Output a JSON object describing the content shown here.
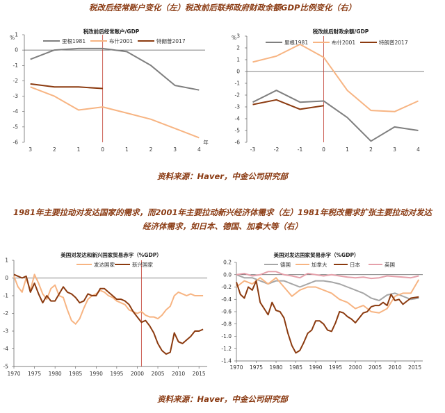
{
  "captions": {
    "top": "税改后经常账户变化（左）税改前后联邦政府财政余额GDP比例变化（右）",
    "source_top": "资料来源：Haver，中金公司研究部",
    "mid_line1": "1981年主要拉动对发达国家的需求，而2001年主要拉动新兴经济体需求（左）1981年税改需求扩张主要拉动对发达",
    "mid_line2": "经济体需求，如日本、德国、加拿大等（右）",
    "source_bottom": "资料来源：Haver，中金公司研究部"
  },
  "colors": {
    "reagan": "#7f7f7f",
    "bush": "#f7b482",
    "trump": "#8b3a0f",
    "developed": "#f7b482",
    "emerging": "#8b3a0f",
    "germany": "#a6a6a6",
    "canada": "#f7b482",
    "japan": "#8b3a0f",
    "uk": "#e5a0aa",
    "vline": "#c0392b",
    "axis": "#555555"
  },
  "chart_data": [
    {
      "id": "chart1",
      "type": "line",
      "title": "税改前后经常账户/GDP",
      "unit": "%",
      "xlabel": "年",
      "x_ticks": [
        "3",
        "2",
        "1",
        "0",
        "1",
        "2",
        "3",
        "4"
      ],
      "ylim": [
        -6,
        1
      ],
      "y_ticks": [
        "1",
        "0",
        "-1",
        "-2",
        "-3",
        "-4",
        "-5",
        "-6"
      ],
      "vline_index": 3,
      "series": [
        {
          "name": "里根1981",
          "color_key": "reagan",
          "values": [
            -0.6,
            0,
            0.1,
            0.1,
            -0.1,
            -1,
            -2.3,
            -2.6
          ]
        },
        {
          "name": "布什2001",
          "color_key": "bush",
          "values": [
            -2.4,
            -3,
            -3.9,
            -3.7,
            -4.1,
            -4.5,
            -5.1,
            -5.7
          ]
        },
        {
          "name": "特朗普2017",
          "color_key": "trump",
          "values": [
            -2.2,
            -2.4,
            -2.4,
            -2.5,
            null,
            null,
            null,
            null
          ]
        }
      ]
    },
    {
      "id": "chart2",
      "type": "line",
      "title": "税改前后财政余额/GDP",
      "unit": "%",
      "xlabel": "",
      "x_ticks": [
        "-3",
        "-2",
        "-1",
        "0",
        "1",
        "2",
        "3",
        "4"
      ],
      "ylim": [
        -6,
        3
      ],
      "y_ticks": [
        "3",
        "2",
        "1",
        "0",
        "-1",
        "-2",
        "-3",
        "-4",
        "-5",
        "-6"
      ],
      "vline_index": 3,
      "series": [
        {
          "name": "里根1981",
          "color_key": "reagan",
          "values": [
            -2.6,
            -1.6,
            -2.6,
            -2.5,
            -3.9,
            -5.9,
            -4.7,
            -5.0
          ]
        },
        {
          "name": "布什2001",
          "color_key": "bush",
          "values": [
            0.8,
            1.3,
            2.3,
            1.2,
            -1.6,
            -3.3,
            -3.4,
            -2.5
          ]
        },
        {
          "name": "特朗普2017",
          "color_key": "trump",
          "values": [
            -2.8,
            -2.4,
            -3.2,
            -2.9,
            null,
            null,
            null,
            null
          ]
        }
      ]
    },
    {
      "id": "chart3",
      "type": "line",
      "title": "美国对发达和新兴国家贸易赤字（%GDP）",
      "unit": "",
      "x_ticks": [
        "1970",
        "1975",
        "1980",
        "1985",
        "1990",
        "1995",
        "2000",
        "2005",
        "2010",
        "2015"
      ],
      "xlim": [
        1970,
        2017
      ],
      "ylim": [
        -5,
        1
      ],
      "y_ticks": [
        "1",
        "0",
        "-1",
        "-2",
        "-3",
        "-4",
        "-5"
      ],
      "vline_x": 2001,
      "series": [
        {
          "name": "发达国家",
          "color_key": "developed",
          "x": [
            1970,
            1971,
            1972,
            1973,
            1974,
            1975,
            1976,
            1977,
            1978,
            1979,
            1980,
            1981,
            1982,
            1983,
            1984,
            1985,
            1986,
            1987,
            1988,
            1989,
            1990,
            1991,
            1992,
            1993,
            1994,
            1995,
            1996,
            1997,
            1998,
            1999,
            2000,
            2001,
            2002,
            2003,
            2004,
            2005,
            2006,
            2007,
            2008,
            2009,
            2010,
            2011,
            2012,
            2013,
            2014,
            2015,
            2016
          ],
          "values": [
            0.1,
            -0.5,
            -0.8,
            0.0,
            -0.7,
            0.2,
            -0.3,
            -0.9,
            -1.2,
            -0.6,
            -0.4,
            -1.0,
            -1.1,
            -1.8,
            -2.4,
            -2.6,
            -2.3,
            -1.7,
            -1.2,
            -1.0,
            -0.9,
            -0.7,
            -0.8,
            -1.0,
            -1.1,
            -1.3,
            -1.4,
            -1.5,
            -1.8,
            -1.9,
            -2.0,
            -1.9,
            -2.1,
            -2.2,
            -2.2,
            -2.3,
            -2.1,
            -1.8,
            -1.6,
            -1.0,
            -0.8,
            -0.9,
            -1.0,
            -0.9,
            -1.0,
            -1.0,
            -1.0
          ]
        },
        {
          "name": "新兴国家",
          "color_key": "emerging",
          "x": [
            1970,
            1971,
            1972,
            1973,
            1974,
            1975,
            1976,
            1977,
            1978,
            1979,
            1980,
            1981,
            1982,
            1983,
            1984,
            1985,
            1986,
            1987,
            1988,
            1989,
            1990,
            1991,
            1992,
            1993,
            1994,
            1995,
            1996,
            1997,
            1998,
            1999,
            2000,
            2001,
            2002,
            2003,
            2004,
            2005,
            2006,
            2007,
            2008,
            2009,
            2010,
            2011,
            2012,
            2013,
            2014,
            2015,
            2016
          ],
          "values": [
            0.2,
            0.1,
            0.0,
            0.1,
            -0.8,
            -0.3,
            -0.9,
            -1.4,
            -1.0,
            -1.3,
            -1.3,
            -0.9,
            -0.5,
            -0.8,
            -0.9,
            -1.1,
            -1.4,
            -1.3,
            -0.9,
            -1.0,
            -1.0,
            -0.6,
            -0.6,
            -0.8,
            -1.0,
            -1.2,
            -1.2,
            -1.3,
            -1.5,
            -1.9,
            -2.2,
            -2.5,
            -2.4,
            -2.7,
            -3.1,
            -3.7,
            -4.1,
            -4.3,
            -4.2,
            -3.1,
            -3.6,
            -3.7,
            -3.5,
            -3.3,
            -3.0,
            -3.0,
            -2.9
          ]
        }
      ]
    },
    {
      "id": "chart4",
      "type": "line",
      "title": "美国对发达国家贸易赤字（%GDP）",
      "unit": "",
      "x_ticks": [
        "1970",
        "1975",
        "1980",
        "1985",
        "1990",
        "1995",
        "2000",
        "2005",
        "2010",
        "2015"
      ],
      "xlim": [
        1970,
        2017
      ],
      "ylim": [
        -1.4,
        0.2
      ],
      "y_ticks": [
        "0.2",
        "0.0",
        "-0.2",
        "-0.4",
        "-0.6",
        "-0.8",
        "-1.0",
        "-1.2",
        "-1.4"
      ],
      "series": [
        {
          "name": "德国",
          "color_key": "germany",
          "x": [
            1970,
            1972,
            1974,
            1976,
            1978,
            1980,
            1982,
            1984,
            1986,
            1988,
            1990,
            1992,
            1994,
            1996,
            1998,
            2000,
            2002,
            2004,
            2006,
            2008,
            2010,
            2012,
            2014,
            2016
          ],
          "values": [
            0.0,
            -0.05,
            -0.05,
            -0.1,
            -0.15,
            -0.1,
            -0.1,
            -0.15,
            -0.2,
            -0.15,
            -0.1,
            -0.1,
            -0.12,
            -0.15,
            -0.2,
            -0.25,
            -0.3,
            -0.38,
            -0.42,
            -0.33,
            -0.3,
            -0.35,
            -0.4,
            -0.38
          ]
        },
        {
          "name": "加拿大",
          "color_key": "canada",
          "x": [
            1970,
            1972,
            1974,
            1976,
            1978,
            1980,
            1982,
            1984,
            1986,
            1988,
            1990,
            1992,
            1994,
            1996,
            1998,
            2000,
            2002,
            2004,
            2006,
            2008,
            2010,
            2012,
            2014,
            2016
          ],
          "values": [
            -0.2,
            -0.1,
            -0.15,
            -0.05,
            -0.15,
            -0.05,
            -0.2,
            -0.35,
            -0.25,
            -0.2,
            -0.2,
            -0.25,
            -0.3,
            -0.4,
            -0.45,
            -0.55,
            -0.5,
            -0.6,
            -0.62,
            -0.55,
            -0.35,
            -0.3,
            -0.3,
            -0.08
          ]
        },
        {
          "name": "日本",
          "color_key": "japan",
          "x": [
            1970,
            1971,
            1972,
            1973,
            1974,
            1975,
            1976,
            1977,
            1978,
            1979,
            1980,
            1981,
            1982,
            1983,
            1984,
            1985,
            1986,
            1987,
            1988,
            1989,
            1990,
            1991,
            1992,
            1993,
            1994,
            1995,
            1996,
            1997,
            1998,
            1999,
            2000,
            2001,
            2002,
            2003,
            2004,
            2005,
            2006,
            2007,
            2008,
            2009,
            2010,
            2011,
            2012,
            2013,
            2014,
            2015,
            2016
          ],
          "values": [
            -0.12,
            -0.32,
            -0.38,
            -0.2,
            -0.25,
            -0.1,
            -0.45,
            -0.55,
            -0.65,
            -0.45,
            -0.58,
            -0.6,
            -0.7,
            -0.95,
            -1.15,
            -1.27,
            -1.23,
            -1.1,
            -0.95,
            -0.9,
            -0.75,
            -0.75,
            -0.8,
            -0.9,
            -0.92,
            -0.78,
            -0.6,
            -0.62,
            -0.68,
            -0.72,
            -0.78,
            -0.7,
            -0.62,
            -0.6,
            -0.52,
            -0.5,
            -0.5,
            -0.45,
            -0.5,
            -0.32,
            -0.42,
            -0.4,
            -0.48,
            -0.43,
            -0.38,
            -0.37,
            -0.36
          ]
        },
        {
          "name": "英国",
          "color_key": "uk",
          "x": [
            1970,
            1972,
            1974,
            1976,
            1978,
            1980,
            1982,
            1984,
            1986,
            1988,
            1990,
            1992,
            1994,
            1996,
            1998,
            2000,
            2002,
            2004,
            2006,
            2008,
            2010,
            2012,
            2014,
            2016
          ],
          "values": [
            0.0,
            0.02,
            -0.02,
            0.0,
            0.05,
            0.05,
            0.0,
            -0.02,
            -0.05,
            0.02,
            0.0,
            -0.02,
            0.0,
            -0.02,
            -0.04,
            -0.05,
            -0.04,
            -0.06,
            -0.05,
            -0.02,
            -0.03,
            -0.04,
            -0.05,
            -0.02
          ]
        }
      ]
    }
  ]
}
